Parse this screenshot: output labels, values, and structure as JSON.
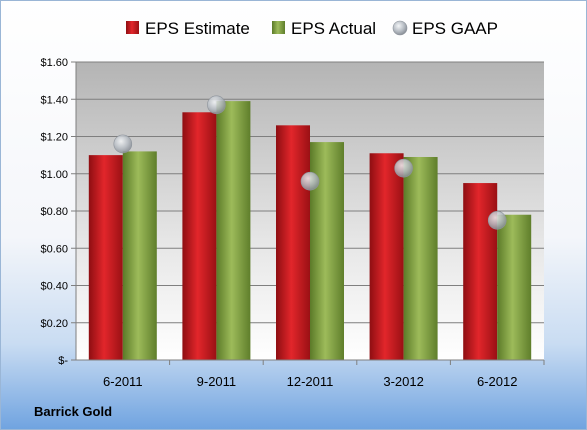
{
  "company": "Barrick Gold",
  "colors": {
    "estimate": "#c0161b",
    "actual": "#7a9a3c",
    "gaap": "#b8bec6"
  },
  "chart_data": {
    "type": "bar",
    "categories": [
      "6-2011",
      "9-2011",
      "12-2011",
      "3-2012",
      "6-2012"
    ],
    "series": [
      {
        "name": "EPS Estimate",
        "values": [
          1.1,
          1.33,
          1.26,
          1.11,
          0.95
        ]
      },
      {
        "name": "EPS Actual",
        "values": [
          1.12,
          1.39,
          1.17,
          1.09,
          0.78
        ]
      },
      {
        "name": "EPS GAAP",
        "values": [
          1.16,
          1.37,
          0.96,
          1.03,
          0.75
        ]
      }
    ],
    "y_ticks": [
      "$-",
      "$0.20",
      "$0.40",
      "$0.60",
      "$0.80",
      "$1.00",
      "$1.20",
      "$1.40",
      "$1.60"
    ],
    "y_tick_values": [
      0,
      0.2,
      0.4,
      0.6,
      0.8,
      1.0,
      1.2,
      1.4,
      1.6
    ],
    "ylim": [
      0,
      1.6
    ],
    "grid": true,
    "legend_position": "top"
  }
}
